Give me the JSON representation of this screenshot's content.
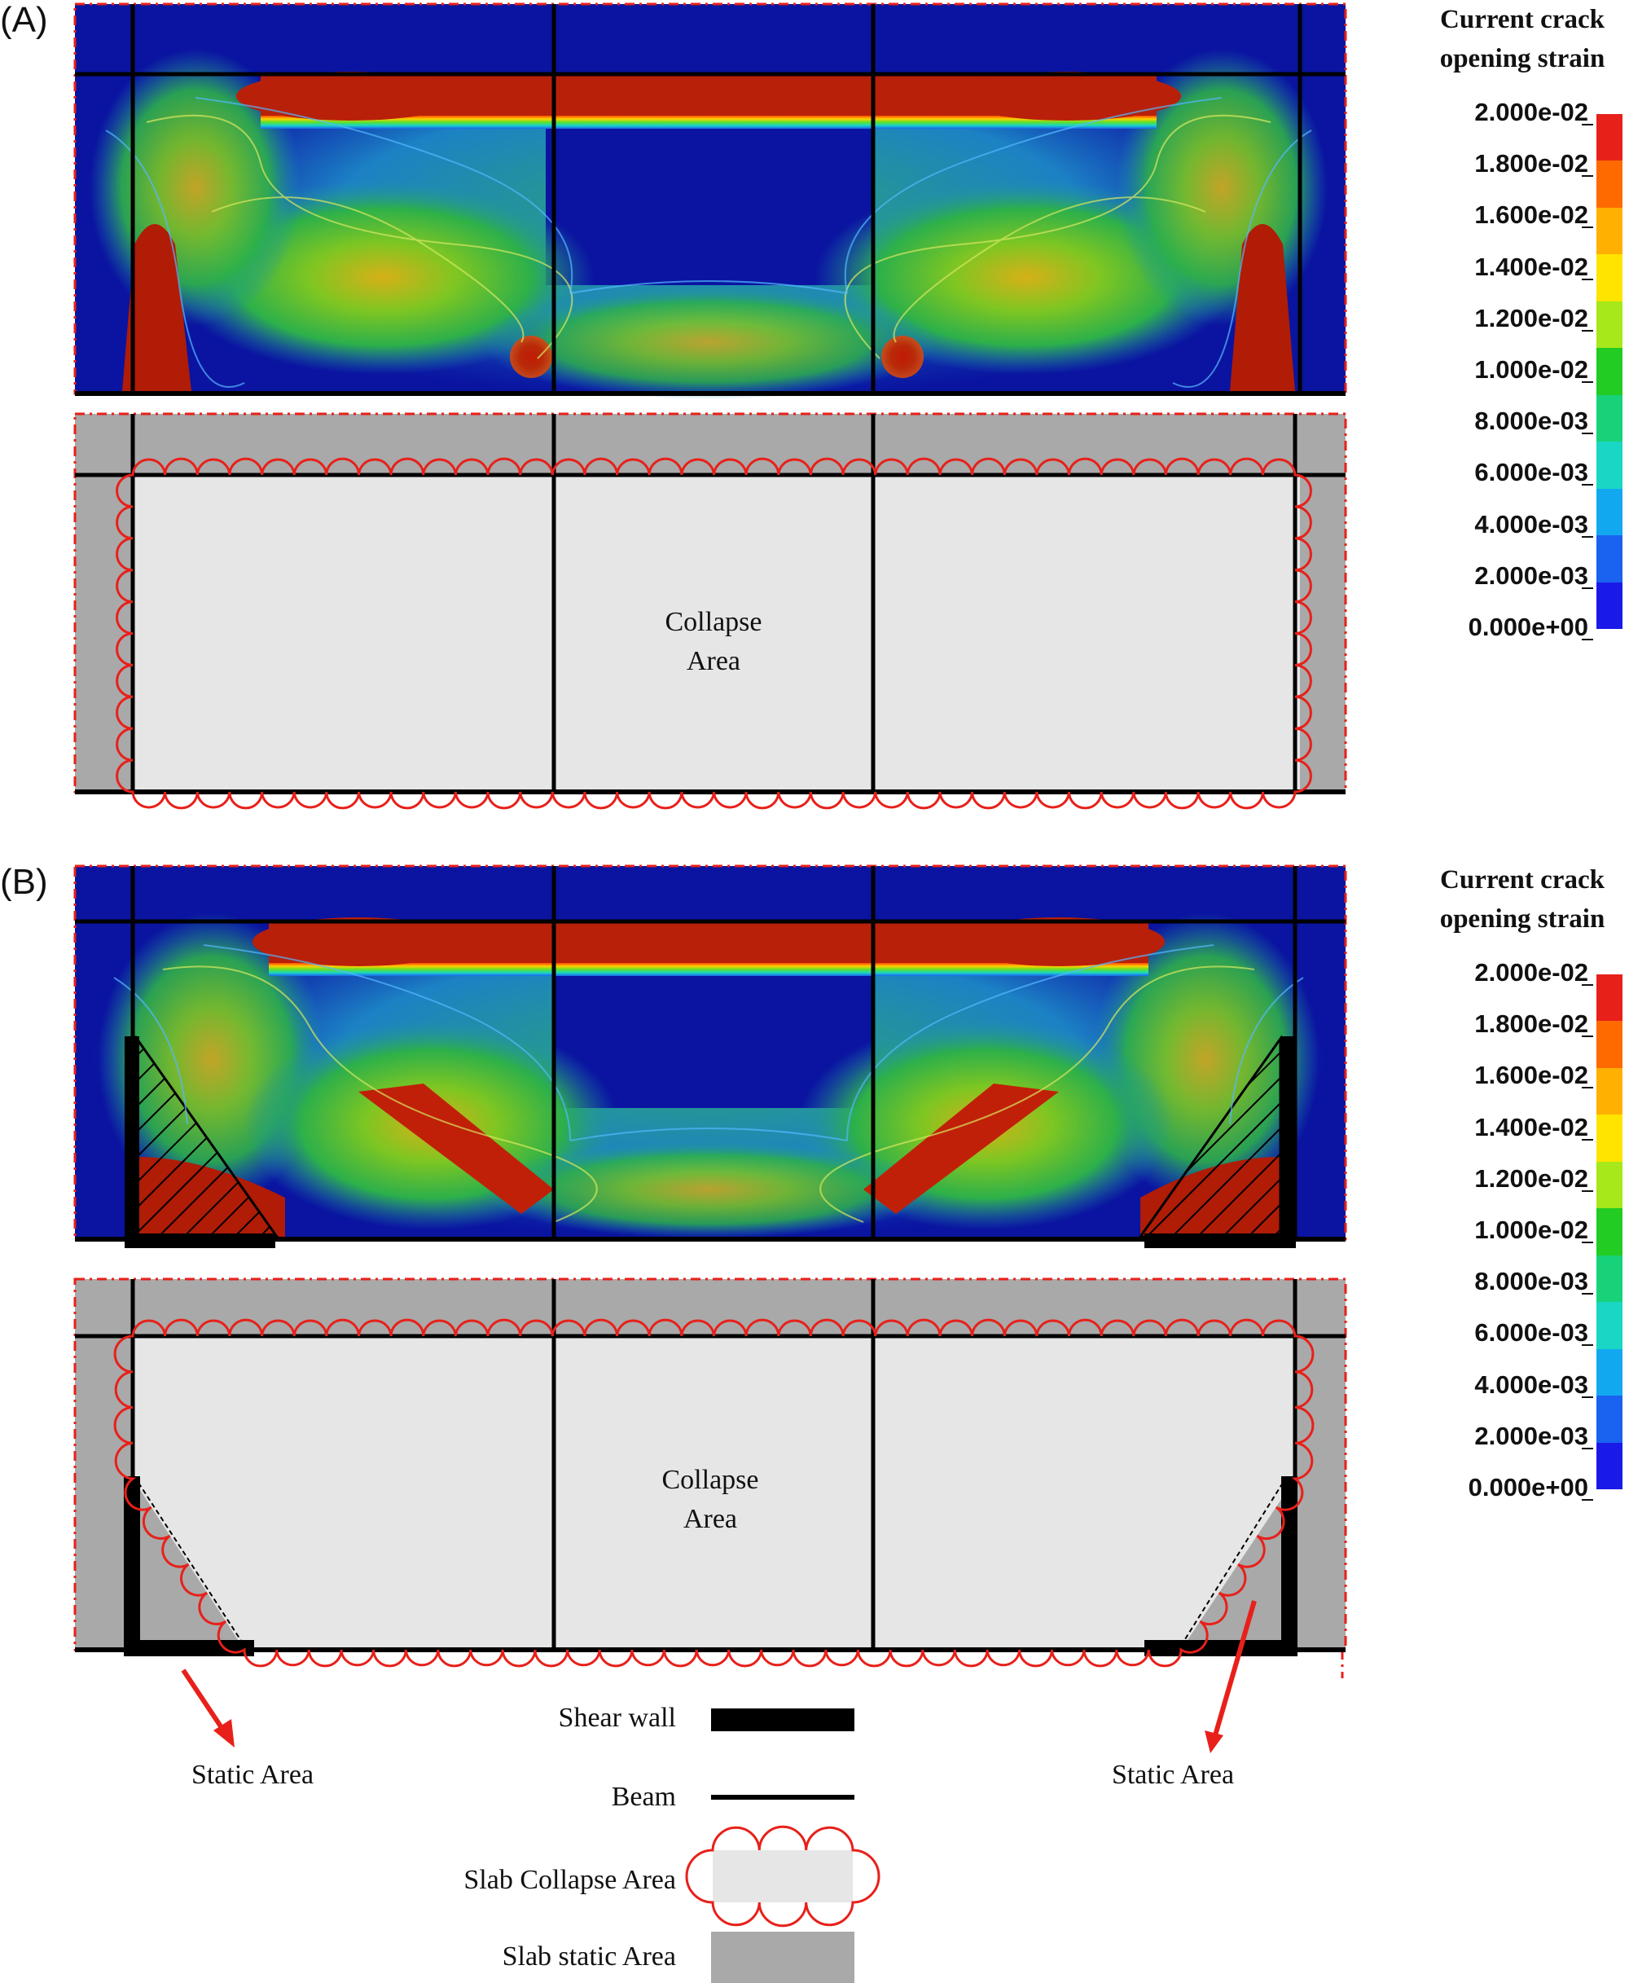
{
  "panels": [
    {
      "label": "(A)",
      "collapse_text": [
        "Collapse",
        "Area"
      ],
      "legend_title": [
        "Current crack",
        "opening strain"
      ]
    },
    {
      "label": "(B)",
      "collapse_text": [
        "Collapse",
        "Area"
      ],
      "legend_title": [
        "Current crack",
        "opening strain"
      ]
    }
  ],
  "colorbar": {
    "ticks": [
      "2.000e-02",
      "1.800e-02",
      "1.600e-02",
      "1.400e-02",
      "1.200e-02",
      "1.000e-02",
      "8.000e-03",
      "6.000e-03",
      "4.000e-03",
      "2.000e-03",
      "0.000e+00"
    ],
    "colors": [
      "#e8201a",
      "#ff6a00",
      "#ffb000",
      "#ffe400",
      "#a6e81a",
      "#22cc22",
      "#18d27a",
      "#19d7c4",
      "#12a8f0",
      "#1a62f0",
      "#1a1ae8"
    ]
  },
  "static_labels": [
    "Static Area",
    "Static Area"
  ],
  "legend": {
    "shear_wall": "Shear wall",
    "beam": "Beam",
    "slab_collapse": "Slab Collapse Area",
    "slab_static": "Slab static Area"
  },
  "colors": {
    "contour_bg": "#0a14a0",
    "slab_static": "#a9a9a9",
    "slab_collapse": "#e6e6e6",
    "collapse_outline": "#e8201a",
    "beam": "#000000"
  }
}
